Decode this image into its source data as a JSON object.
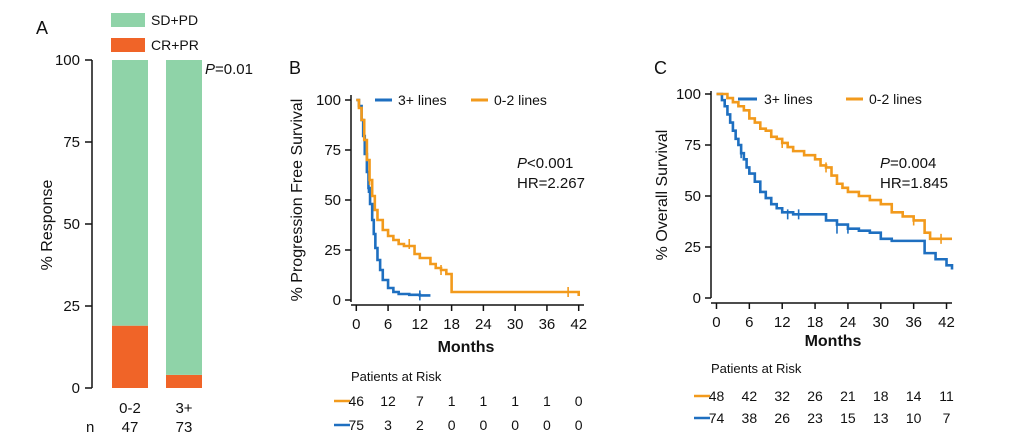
{
  "chart_data": [
    {
      "panel": "A",
      "type": "bar",
      "stacked": true,
      "categories": [
        "0-2",
        "3+"
      ],
      "n_label": "n",
      "n_values": [
        "47",
        "73"
      ],
      "series": [
        {
          "name": "CR+PR",
          "color": "#F06428",
          "values": [
            19,
            4
          ]
        },
        {
          "name": "SD+PD",
          "color": "#8FD3A8",
          "values": [
            81,
            96
          ]
        }
      ],
      "ylabel": "% Response",
      "ylim": [
        0,
        100
      ],
      "yticks": [
        "0",
        "25",
        "50",
        "75",
        "100"
      ],
      "annotation": {
        "p_italic": "P",
        "p_rest": "=0.01"
      },
      "legend_position": "top"
    },
    {
      "panel": "B",
      "type": "line",
      "step": true,
      "xlabel": "Months",
      "ylabel": "% Progression Free Survival",
      "xlim": [
        -1,
        43
      ],
      "ylim": [
        0,
        100
      ],
      "xticks": [
        "0",
        "6",
        "12",
        "18",
        "24",
        "30",
        "36",
        "42"
      ],
      "yticks": [
        "0",
        "25",
        "50",
        "75",
        "100"
      ],
      "annotation": {
        "p_italic": "P",
        "p_rest": "<0.001",
        "hr": "HR=2.267"
      },
      "legend_position": "top",
      "series": [
        {
          "name": "3+ lines",
          "color": "#1E6FC0",
          "x": [
            0,
            0.5,
            1,
            1.3,
            1.6,
            2,
            2.3,
            2.6,
            3,
            3.3,
            3.6,
            4,
            4.5,
            5,
            6,
            7,
            8,
            10,
            12,
            14
          ],
          "y": [
            100,
            97,
            90,
            82,
            73,
            64,
            56,
            48,
            40,
            33,
            26,
            20,
            15,
            10,
            6,
            4,
            3,
            2.6,
            2.3,
            2.3
          ],
          "censors": [
            [
              2.3,
              56
            ],
            [
              12,
              2.3
            ]
          ]
        },
        {
          "name": "0-2 lines",
          "color": "#F29A1C",
          "x": [
            0,
            0.5,
            1,
            1.5,
            2,
            2.5,
            3,
            3.5,
            4,
            5,
            6,
            7,
            8,
            9,
            11,
            12,
            14,
            15,
            16,
            17,
            18,
            22,
            30,
            36,
            40,
            42
          ],
          "y": [
            100,
            96,
            90,
            80,
            70,
            60,
            52,
            45,
            40,
            35,
            32,
            30,
            28,
            27,
            23,
            21,
            18,
            16,
            15,
            13,
            4,
            4,
            4,
            4,
            4,
            2
          ],
          "censors": [
            [
              2.5,
              60
            ],
            [
              10,
              28
            ],
            [
              16,
              15
            ],
            [
              40,
              4
            ]
          ]
        }
      ],
      "risk_table": {
        "title": "Patients at Risk",
        "rows": [
          {
            "series": "0-2 lines",
            "color": "#F29A1C",
            "values": [
              "46",
              "12",
              "7",
              "1",
              "1",
              "1",
              "1",
              "0"
            ]
          },
          {
            "series": "3+ lines",
            "color": "#1E6FC0",
            "values": [
              "75",
              "3",
              "2",
              "0",
              "0",
              "0",
              "0",
              "0"
            ]
          }
        ]
      }
    },
    {
      "panel": "C",
      "type": "line",
      "step": true,
      "xlabel": "Months",
      "ylabel": "% Overall Survival",
      "xlim": [
        -1,
        43
      ],
      "ylim": [
        0,
        100
      ],
      "xticks": [
        "0",
        "6",
        "12",
        "18",
        "24",
        "30",
        "36",
        "42"
      ],
      "yticks": [
        "0",
        "25",
        "50",
        "75",
        "100"
      ],
      "annotation": {
        "p_italic": "P",
        "p_rest": "=0.004",
        "hr": "HR=1.845"
      },
      "legend_position": "top",
      "series": [
        {
          "name": "3+ lines",
          "color": "#1E6FC0",
          "x": [
            0,
            1,
            1.5,
            2,
            2.5,
            3,
            3.5,
            4,
            4.5,
            5,
            5.5,
            6,
            7,
            8,
            9,
            10,
            11,
            12,
            14,
            16,
            18,
            20,
            22,
            24,
            26,
            28,
            30,
            32,
            34,
            36,
            38,
            40,
            42,
            43
          ],
          "y": [
            100,
            97,
            94,
            90,
            86,
            82,
            78,
            75,
            71,
            68,
            64,
            61,
            57,
            52,
            49,
            46,
            44,
            42,
            41,
            41,
            41,
            38,
            36,
            34,
            33,
            32,
            29,
            28,
            28,
            28,
            22,
            19,
            16,
            14
          ],
          "censors": [
            [
              4.5,
              71
            ],
            [
              13,
              41
            ],
            [
              15,
              41
            ],
            [
              22,
              34
            ],
            [
              24,
              34
            ]
          ]
        },
        {
          "name": "0-2 lines",
          "color": "#F29A1C",
          "x": [
            0,
            2,
            3,
            4,
            5,
            6,
            7,
            8,
            9,
            10,
            11,
            12,
            13,
            14,
            16,
            18,
            19,
            20,
            21,
            22,
            23,
            24,
            26,
            28,
            30,
            32,
            34,
            36,
            38,
            39,
            40,
            43
          ],
          "y": [
            100,
            98,
            96,
            94,
            92,
            88,
            86,
            83,
            82,
            79,
            78,
            76,
            74,
            72,
            70,
            68,
            65,
            64,
            60,
            56,
            54,
            52,
            50,
            48,
            46,
            42,
            40,
            38,
            32,
            29,
            29,
            29
          ],
          "censors": [
            [
              12,
              76
            ],
            [
              20,
              64
            ],
            [
              36,
              38
            ],
            [
              41,
              29
            ]
          ]
        }
      ],
      "risk_table": {
        "title": "Patients at Risk",
        "rows": [
          {
            "series": "0-2 lines",
            "color": "#F29A1C",
            "values": [
              "48",
              "42",
              "32",
              "26",
              "21",
              "18",
              "14",
              "11"
            ]
          },
          {
            "series": "3+ lines",
            "color": "#1E6FC0",
            "values": [
              "74",
              "38",
              "26",
              "23",
              "15",
              "13",
              "10",
              "7"
            ]
          }
        ]
      }
    }
  ]
}
